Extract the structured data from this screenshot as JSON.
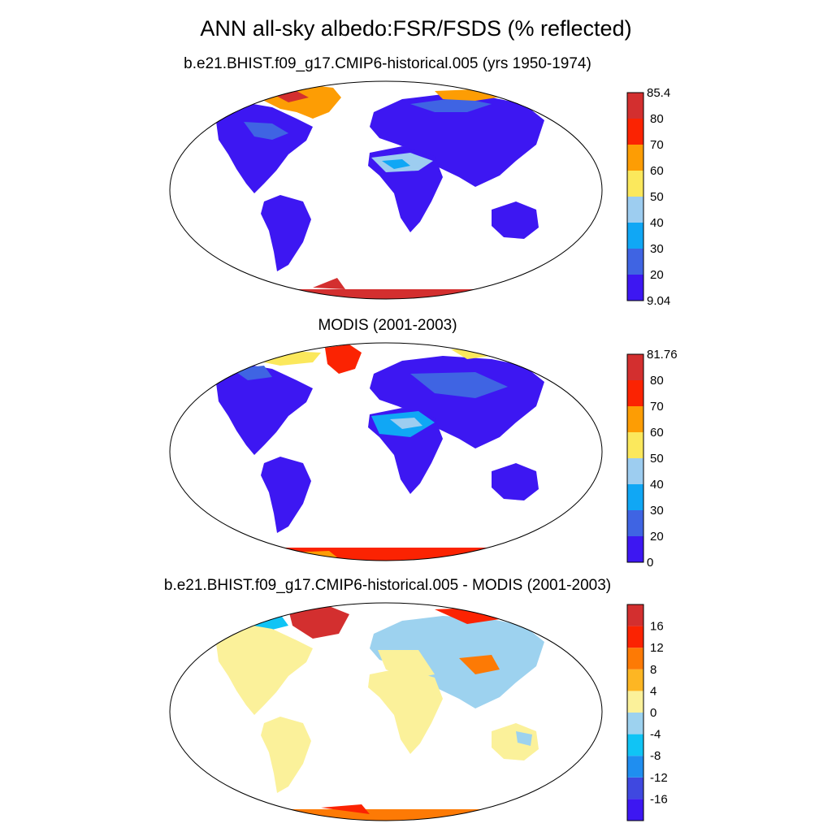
{
  "figure": {
    "title": "ANN all-sky albedo:FSR/FSDS (% reflected)"
  },
  "panels": [
    {
      "id": "model",
      "title": "b.e21.BHIST.f09_g17.CMIP6-historical.005 (yrs 1950-1974)",
      "colorbar": {
        "labels": [
          "9.04",
          "20",
          "30",
          "40",
          "50",
          "60",
          "70",
          "80",
          "85.4"
        ],
        "colors": [
          "#3d17f2",
          "#3f64e3",
          "#10a7f5",
          "#9dcdf0",
          "#fbe85c",
          "#fd9d04",
          "#fb2302",
          "#d32f2f"
        ]
      }
    },
    {
      "id": "obs",
      "title": "MODIS (2001-2003)",
      "colorbar": {
        "labels": [
          "0",
          "20",
          "30",
          "40",
          "50",
          "60",
          "70",
          "80",
          "81.76"
        ],
        "colors": [
          "#3d17f2",
          "#3f64e3",
          "#10a7f5",
          "#9dcdf0",
          "#fbe85c",
          "#fd9d04",
          "#fb2302",
          "#d32f2f"
        ]
      }
    },
    {
      "id": "diff",
      "title": "b.e21.BHIST.f09_g17.CMIP6-historical.005 - MODIS (2001-2003)",
      "colorbar": {
        "labels": [
          "-16",
          "-12",
          "-8",
          "-4",
          "0",
          "4",
          "8",
          "12",
          "16"
        ],
        "colors": [
          "#3d17f2",
          "#3f48e0",
          "#1f8ef0",
          "#10c4f5",
          "#9dd2ef",
          "#fbf19a",
          "#fdb623",
          "#fd7a05",
          "#fb2302",
          "#d32f2f"
        ]
      }
    }
  ]
}
